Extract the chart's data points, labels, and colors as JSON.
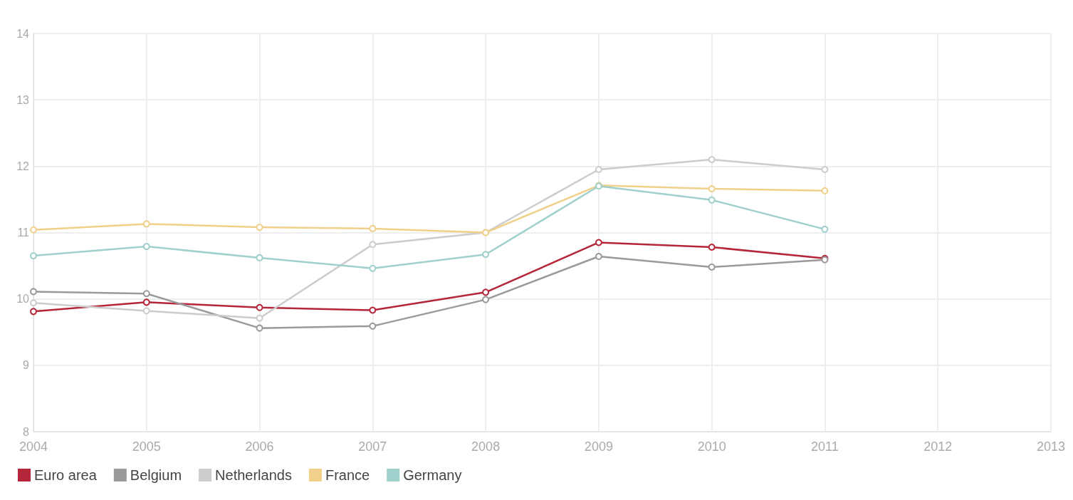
{
  "chart_data": {
    "type": "line",
    "x": [
      2004,
      2005,
      2006,
      2007,
      2008,
      2009,
      2010,
      2011
    ],
    "series": [
      {
        "name": "Euro area",
        "color": "#b5263a",
        "values": [
          9.81,
          9.95,
          9.87,
          9.83,
          10.1,
          10.85,
          10.78,
          10.61
        ]
      },
      {
        "name": "Belgium",
        "color": "#9a9a9a",
        "values": [
          10.11,
          10.08,
          9.56,
          9.59,
          9.99,
          10.64,
          10.48,
          10.59
        ]
      },
      {
        "name": "Netherlands",
        "color": "#cccccc",
        "values": [
          9.94,
          9.82,
          9.71,
          10.82,
          11.0,
          11.95,
          12.1,
          11.95
        ]
      },
      {
        "name": "France",
        "color": "#f0d08a",
        "values": [
          11.04,
          11.13,
          11.08,
          11.06,
          11.0,
          11.71,
          11.66,
          11.63
        ]
      },
      {
        "name": "Germany",
        "color": "#9fd0cc",
        "values": [
          10.65,
          10.79,
          10.62,
          10.46,
          10.67,
          11.7,
          11.49,
          11.05
        ]
      }
    ],
    "xlim": [
      2004,
      2013
    ],
    "xticks": [
      2004,
      2005,
      2006,
      2007,
      2008,
      2009,
      2010,
      2011,
      2012,
      2013
    ],
    "ylim": [
      8,
      14
    ],
    "yticks": [
      8,
      9,
      10,
      11,
      12,
      13,
      14
    ],
    "grid": true,
    "legend": "bottom left",
    "marker": "circle",
    "line_style": "solid"
  }
}
